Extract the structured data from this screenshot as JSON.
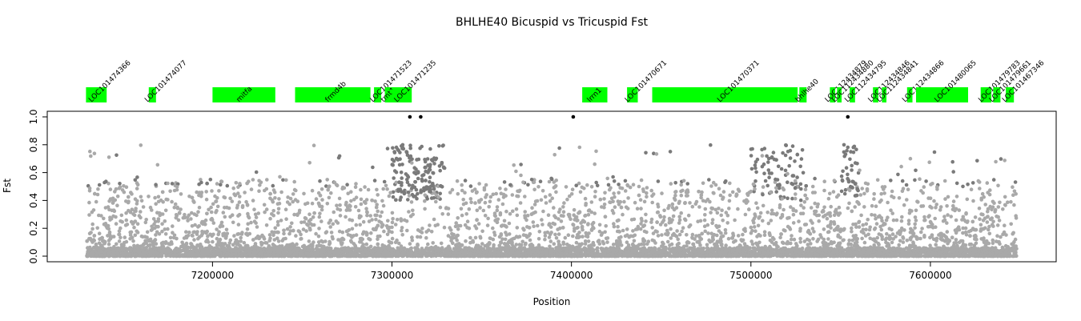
{
  "chart_data": {
    "type": "scatter",
    "title": "BHLHE40 Bicuspid vs Tricuspid Fst",
    "xlabel": "Position",
    "ylabel": "Fst",
    "xlim": [
      7128000,
      7650000
    ],
    "ylim": [
      0,
      1.0
    ],
    "x_ticks": [
      7200000,
      7300000,
      7400000,
      7500000,
      7600000
    ],
    "x_tick_labels": [
      "7200000",
      "7300000",
      "7400000",
      "7500000",
      "7600000"
    ],
    "y_ticks": [
      0.0,
      0.2,
      0.4,
      0.6,
      0.8,
      1.0
    ],
    "y_tick_labels": [
      "0.0",
      "0.2",
      "0.4",
      "0.6",
      "0.8",
      "1.0"
    ],
    "grid": false,
    "colors": {
      "background_points": "#a9a9a9",
      "mid_points": "#7a7a7a",
      "top_points": "#000000",
      "genes": "#00ff00"
    },
    "top_points": [
      {
        "x": 7310000,
        "y": 1.0
      },
      {
        "x": 7316000,
        "y": 1.0
      },
      {
        "x": 7401000,
        "y": 1.0
      },
      {
        "x": 7554000,
        "y": 1.0
      }
    ],
    "genes": [
      {
        "name": "LOC101474366",
        "start": 7129500,
        "end": 7141000
      },
      {
        "name": "LOC101474077",
        "start": 7164500,
        "end": 7168500
      },
      {
        "name": "mitfa",
        "start": 7200000,
        "end": 7235000
      },
      {
        "name": "frmd4b",
        "start": 7246000,
        "end": 7288000
      },
      {
        "name": "LOC101471523",
        "start": 7290000,
        "end": 7294000
      },
      {
        "name": "tmt1",
        "start": 7296000,
        "end": 7300000
      },
      {
        "name": "LOC101471235",
        "start": 7300000,
        "end": 7311000
      },
      {
        "name": "lrrn1",
        "start": 7406000,
        "end": 7420000
      },
      {
        "name": "LOC101470671",
        "start": 7431000,
        "end": 7437000
      },
      {
        "name": "LOC101470371",
        "start": 7445000,
        "end": 7526000
      },
      {
        "name": "bhlhe40",
        "start": 7527000,
        "end": 7531000
      },
      {
        "name": "LOC112434879",
        "start": 7544000,
        "end": 7547000
      },
      {
        "name": "LOC112434880",
        "start": 7548000,
        "end": 7550500
      },
      {
        "name": "LOC112434795",
        "start": 7555000,
        "end": 7558000
      },
      {
        "name": "LOC112434846",
        "start": 7568000,
        "end": 7571000
      },
      {
        "name": "LOC112434841",
        "start": 7573000,
        "end": 7575500
      },
      {
        "name": "LOC112434866",
        "start": 7587000,
        "end": 7590000
      },
      {
        "name": "LOC101480065",
        "start": 7592000,
        "end": 7621000
      },
      {
        "name": "LOC101479783",
        "start": 7628000,
        "end": 7634000
      },
      {
        "name": "LOC101479661",
        "start": 7635000,
        "end": 7639000
      },
      {
        "name": "LOC101467346",
        "start": 7642000,
        "end": 7646500
      }
    ]
  }
}
